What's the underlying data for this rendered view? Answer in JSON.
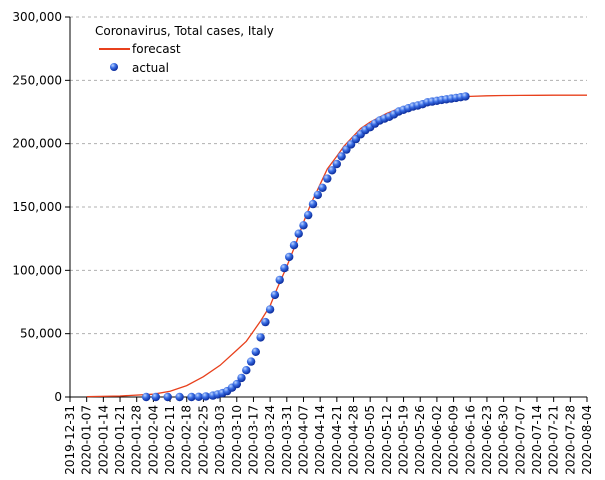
{
  "chart_data": {
    "type": "line",
    "title": "Coronavirus, Total cases, Italy",
    "xlabel": "",
    "ylabel": "",
    "x_range": [
      "2019-12-31",
      "2020-08-04"
    ],
    "ylim": [
      0,
      300000
    ],
    "y_ticks": [
      0,
      50000,
      100000,
      150000,
      200000,
      250000,
      300000
    ],
    "y_tick_labels": [
      "0",
      "50,000",
      "100,000",
      "150,000",
      "200,000",
      "250,000",
      "300,000"
    ],
    "x_ticks": [
      "2019-12-31",
      "2020-01-07",
      "2020-01-14",
      "2020-01-21",
      "2020-01-28",
      "2020-02-04",
      "2020-02-11",
      "2020-02-18",
      "2020-02-25",
      "2020-03-03",
      "2020-03-10",
      "2020-03-17",
      "2020-03-24",
      "2020-03-31",
      "2020-04-07",
      "2020-04-14",
      "2020-04-21",
      "2020-04-28",
      "2020-05-05",
      "2020-05-12",
      "2020-05-19",
      "2020-05-26",
      "2020-06-02",
      "2020-06-09",
      "2020-06-16",
      "2020-06-23",
      "2020-06-30",
      "2020-07-07",
      "2020-07-14",
      "2020-07-21",
      "2020-07-28",
      "2020-08-04"
    ],
    "grid": "horizontal dashed",
    "legend_position": "top-left",
    "colors": {
      "forecast": "#e8401c",
      "actual": "#1f4fd8",
      "grid": "#b0b0b0"
    },
    "series": [
      {
        "name": "forecast",
        "style": "line",
        "x": [
          "2020-01-07",
          "2020-01-21",
          "2020-02-04",
          "2020-02-11",
          "2020-02-18",
          "2020-02-25",
          "2020-03-03",
          "2020-03-10",
          "2020-03-14",
          "2020-03-17",
          "2020-03-20",
          "2020-03-24",
          "2020-03-27",
          "2020-03-31",
          "2020-04-04",
          "2020-04-07",
          "2020-04-10",
          "2020-04-14",
          "2020-04-17",
          "2020-04-21",
          "2020-04-24",
          "2020-04-28",
          "2020-05-01",
          "2020-05-05",
          "2020-05-09",
          "2020-05-12",
          "2020-05-16",
          "2020-05-19",
          "2020-05-23",
          "2020-05-26",
          "2020-05-30",
          "2020-06-02",
          "2020-06-06",
          "2020-06-09",
          "2020-06-13",
          "2020-06-16",
          "2020-06-23",
          "2020-06-30",
          "2020-07-07",
          "2020-07-14",
          "2020-07-21",
          "2020-07-28",
          "2020-08-04"
        ],
        "values": [
          300,
          800,
          2200,
          4500,
          9000,
          16000,
          25000,
          37000,
          44000,
          52000,
          60000,
          72000,
          86000,
          103000,
          122000,
          138000,
          152000,
          168000,
          180000,
          190000,
          198000,
          206000,
          212000,
          217000,
          221000,
          224000,
          227000,
          229000,
          231000,
          232500,
          234000,
          235000,
          236000,
          236500,
          237000,
          237300,
          237800,
          238000,
          238100,
          238200,
          238300,
          238300,
          238300
        ]
      },
      {
        "name": "actual",
        "style": "markers",
        "x": [
          "2020-02-01",
          "2020-02-05",
          "2020-02-10",
          "2020-02-15",
          "2020-02-20",
          "2020-02-23",
          "2020-02-26",
          "2020-02-29",
          "2020-03-02",
          "2020-03-04",
          "2020-03-06",
          "2020-03-08",
          "2020-03-10",
          "2020-03-12",
          "2020-03-14",
          "2020-03-16",
          "2020-03-18",
          "2020-03-20",
          "2020-03-22",
          "2020-03-24",
          "2020-03-26",
          "2020-03-28",
          "2020-03-30",
          "2020-04-01",
          "2020-04-03",
          "2020-04-05",
          "2020-04-07",
          "2020-04-09",
          "2020-04-11",
          "2020-04-13",
          "2020-04-15",
          "2020-04-17",
          "2020-04-19",
          "2020-04-21",
          "2020-04-23",
          "2020-04-25",
          "2020-04-27",
          "2020-04-29",
          "2020-05-01",
          "2020-05-03",
          "2020-05-05",
          "2020-05-07",
          "2020-05-09",
          "2020-05-11",
          "2020-05-13",
          "2020-05-15",
          "2020-05-17",
          "2020-05-19",
          "2020-05-21",
          "2020-05-23",
          "2020-05-25",
          "2020-05-27",
          "2020-05-29",
          "2020-05-31",
          "2020-06-02",
          "2020-06-04",
          "2020-06-06",
          "2020-06-08",
          "2020-06-10",
          "2020-06-12",
          "2020-06-14"
        ],
        "values": [
          2,
          3,
          3,
          3,
          3,
          150,
          470,
          1130,
          2040,
          3090,
          4640,
          7380,
          10150,
          15110,
          21160,
          27980,
          35710,
          47020,
          59140,
          69180,
          80590,
          92470,
          101740,
          110570,
          119830,
          128950,
          135590,
          143630,
          152270,
          159520,
          165160,
          172430,
          178970,
          183960,
          189970,
          195350,
          199410,
          203590,
          207430,
          210720,
          213010,
          215860,
          218270,
          219810,
          221220,
          223100,
          225430,
          226700,
          228010,
          229330,
          230160,
          231140,
          232660,
          233190,
          233840,
          234530,
          235000,
          235550,
          236140,
          236650,
          237290
        ]
      }
    ]
  }
}
